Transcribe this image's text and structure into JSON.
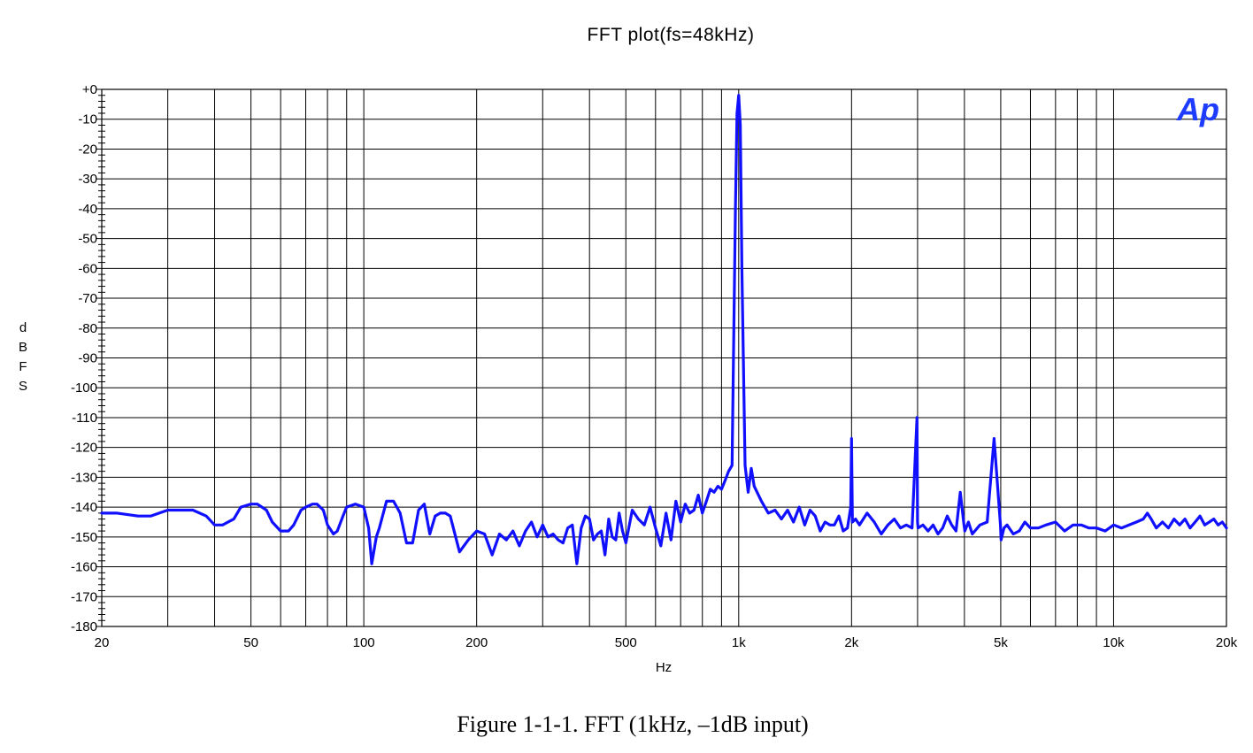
{
  "chart_data": {
    "type": "line",
    "title": "FFT plot(fs=48kHz)",
    "xlabel": "Hz",
    "ylabel": "dBFS",
    "xscale": "log",
    "xlim": [
      20,
      20000
    ],
    "ylim": [
      -180,
      0
    ],
    "grid": true,
    "line_color": "#1010ff",
    "x_ticks": [
      {
        "value": 20,
        "label": "20"
      },
      {
        "value": 50,
        "label": "50"
      },
      {
        "value": 100,
        "label": "100"
      },
      {
        "value": 200,
        "label": "200"
      },
      {
        "value": 500,
        "label": "500"
      },
      {
        "value": 1000,
        "label": "1k"
      },
      {
        "value": 2000,
        "label": "2k"
      },
      {
        "value": 5000,
        "label": "5k"
      },
      {
        "value": 10000,
        "label": "10k"
      },
      {
        "value": 20000,
        "label": "20k"
      }
    ],
    "y_ticks": [
      {
        "value": 0,
        "label": "+0"
      },
      {
        "value": -10,
        "label": "-10"
      },
      {
        "value": -20,
        "label": "-20"
      },
      {
        "value": -30,
        "label": "-30"
      },
      {
        "value": -40,
        "label": "-40"
      },
      {
        "value": -50,
        "label": "-50"
      },
      {
        "value": -60,
        "label": "-60"
      },
      {
        "value": -70,
        "label": "-70"
      },
      {
        "value": -80,
        "label": "-80"
      },
      {
        "value": -90,
        "label": "-90"
      },
      {
        "value": -100,
        "label": "-100"
      },
      {
        "value": -110,
        "label": "-110"
      },
      {
        "value": -120,
        "label": "-120"
      },
      {
        "value": -130,
        "label": "-130"
      },
      {
        "value": -140,
        "label": "-140"
      },
      {
        "value": -150,
        "label": "-150"
      },
      {
        "value": -160,
        "label": "-160"
      },
      {
        "value": -170,
        "label": "-170"
      },
      {
        "value": -180,
        "label": "-180"
      }
    ],
    "series": [
      {
        "x": [
          20,
          22,
          25,
          27,
          30,
          33,
          35,
          38,
          40,
          42,
          45,
          47,
          50,
          52,
          55,
          57,
          60,
          63,
          65,
          68,
          70,
          73,
          75,
          78,
          80,
          83,
          85,
          88,
          90,
          95,
          100,
          103,
          105,
          108,
          110,
          115,
          120,
          125,
          130,
          135,
          140,
          145,
          150,
          155,
          160,
          165,
          170,
          180,
          190,
          200,
          210,
          220,
          230,
          240,
          250,
          260,
          270,
          280,
          290,
          300,
          310,
          320,
          330,
          340,
          350,
          360,
          370,
          380,
          390,
          400,
          410,
          420,
          430,
          440,
          450,
          460,
          470,
          480,
          490,
          500,
          520,
          540,
          560,
          580,
          600,
          620,
          640,
          660,
          680,
          700,
          720,
          740,
          760,
          780,
          800,
          820,
          840,
          860,
          880,
          900,
          920,
          940,
          960,
          980,
          990,
          1000,
          1010,
          1020,
          1040,
          1060,
          1080,
          1100,
          1150,
          1200,
          1250,
          1300,
          1350,
          1400,
          1450,
          1500,
          1550,
          1600,
          1650,
          1700,
          1750,
          1800,
          1850,
          1900,
          1950,
          1990,
          2000,
          2010,
          2050,
          2100,
          2200,
          2300,
          2400,
          2500,
          2600,
          2700,
          2800,
          2900,
          2990,
          3000,
          3010,
          3100,
          3200,
          3300,
          3400,
          3500,
          3600,
          3700,
          3800,
          3900,
          3990,
          4000,
          4010,
          4100,
          4200,
          4400,
          4600,
          4800,
          4990,
          5000,
          5010,
          5100,
          5200,
          5400,
          5600,
          5800,
          6000,
          6300,
          6600,
          7000,
          7400,
          7800,
          8200,
          8600,
          9000,
          9500,
          10000,
          10500,
          11000,
          11500,
          12000,
          12300,
          12600,
          13000,
          13500,
          14000,
          14500,
          15000,
          15500,
          16000,
          16500,
          17000,
          17500,
          18000,
          18500,
          19000,
          19500,
          20000
        ],
        "y": [
          -142,
          -142,
          -143,
          -143,
          -141,
          -141,
          -141,
          -143,
          -146,
          -146,
          -144,
          -140,
          -139,
          -139,
          -141,
          -145,
          -148,
          -148,
          -146,
          -141,
          -140,
          -139,
          -139,
          -141,
          -146,
          -149,
          -148,
          -143,
          -140,
          -139,
          -140,
          -147,
          -159,
          -150,
          -147,
          -138,
          -138,
          -142,
          -152,
          -152,
          -141,
          -139,
          -149,
          -143,
          -142,
          -142,
          -143,
          -155,
          -151,
          -148,
          -149,
          -156,
          -149,
          -151,
          -148,
          -153,
          -148,
          -145,
          -150,
          -146,
          -150,
          -149,
          -151,
          -152,
          -147,
          -146,
          -159,
          -147,
          -143,
          -144,
          -151,
          -149,
          -148,
          -156,
          -144,
          -150,
          -151,
          -142,
          -148,
          -152,
          -141,
          -144,
          -146,
          -140,
          -147,
          -153,
          -142,
          -151,
          -138,
          -145,
          -139,
          -142,
          -141,
          -136,
          -142,
          -138,
          -134,
          -135,
          -133,
          -134,
          -131,
          -128,
          -126,
          -40,
          -8,
          -2,
          -12,
          -60,
          -126,
          -135,
          -127,
          -133,
          -138,
          -142,
          -141,
          -144,
          -141,
          -145,
          -140,
          -146,
          -141,
          -143,
          -148,
          -145,
          -146,
          -146,
          -143,
          -148,
          -147,
          -140,
          -117,
          -145,
          -144,
          -146,
          -142,
          -145,
          -149,
          -146,
          -144,
          -147,
          -146,
          -147,
          -110,
          -145,
          -147,
          -146,
          -148,
          -146,
          -149,
          -147,
          -143,
          -146,
          -148,
          -135,
          -146,
          -147,
          -148,
          -145,
          -149,
          -146,
          -145,
          -117,
          -146,
          -148,
          -151,
          -147,
          -146,
          -149,
          -148,
          -145,
          -147,
          -147,
          -146,
          -145,
          -148,
          -146,
          -146,
          -147,
          -147,
          -148,
          -146,
          -147,
          -146,
          -145,
          -144,
          -142,
          -144,
          -147,
          -145,
          -147,
          -144,
          -146,
          -144,
          -147,
          -145,
          -143,
          -146,
          -145,
          -144,
          -146,
          -145,
          -147
        ]
      }
    ]
  },
  "caption": "Figure 1-1-1. FFT (1kHz, –1dB input)",
  "logo": {
    "text": "Ap",
    "color": "#1e3cff"
  },
  "ylabel_letters": [
    "d",
    "B",
    "F",
    "S"
  ]
}
